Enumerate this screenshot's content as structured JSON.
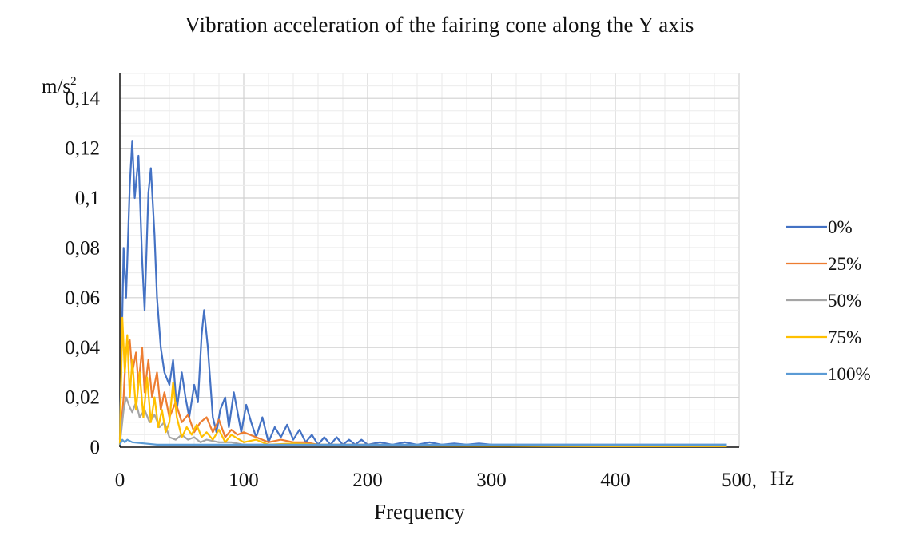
{
  "chart_data": {
    "type": "line",
    "title": "Vibration acceleration of the fairing cone along the Y axis",
    "xlabel": "Frequency",
    "x_unit": "Hz",
    "ylabel": "",
    "y_unit": "m/s",
    "y_unit_exponent": "2",
    "xlim": [
      0,
      500
    ],
    "ylim": [
      0,
      0.15
    ],
    "x_ticks": [
      0,
      100,
      200,
      300,
      400,
      500
    ],
    "x_tick_labels": [
      "0",
      "100",
      "200",
      "300",
      "400",
      "500,"
    ],
    "y_ticks": [
      0,
      0.02,
      0.04,
      0.06,
      0.08,
      0.1,
      0.12,
      0.14
    ],
    "y_tick_labels": [
      "0",
      "0,02",
      "0,04",
      "0,06",
      "0,08",
      "0,1",
      "0,12",
      "0,14"
    ],
    "grid": true,
    "legend_position": "right",
    "series": [
      {
        "name": "0%",
        "color": "#4472C4",
        "x": [
          0,
          3,
          5,
          8,
          10,
          12,
          15,
          18,
          20,
          23,
          25,
          28,
          30,
          33,
          36,
          40,
          43,
          46,
          50,
          53,
          56,
          60,
          63,
          66,
          68,
          71,
          75,
          78,
          81,
          85,
          88,
          92,
          95,
          98,
          102,
          106,
          110,
          115,
          120,
          125,
          130,
          135,
          140,
          145,
          150,
          155,
          160,
          165,
          170,
          175,
          180,
          185,
          190,
          195,
          200,
          210,
          220,
          230,
          240,
          250,
          260,
          270,
          280,
          290,
          300,
          320,
          340,
          360,
          380,
          400,
          420,
          440,
          460,
          480,
          490
        ],
        "values": [
          0.003,
          0.08,
          0.06,
          0.105,
          0.123,
          0.1,
          0.117,
          0.075,
          0.055,
          0.102,
          0.112,
          0.085,
          0.06,
          0.04,
          0.03,
          0.025,
          0.035,
          0.015,
          0.03,
          0.02,
          0.012,
          0.025,
          0.018,
          0.045,
          0.055,
          0.04,
          0.012,
          0.006,
          0.015,
          0.02,
          0.008,
          0.022,
          0.014,
          0.006,
          0.017,
          0.01,
          0.004,
          0.012,
          0.002,
          0.008,
          0.004,
          0.009,
          0.003,
          0.007,
          0.002,
          0.005,
          0.001,
          0.004,
          0.001,
          0.004,
          0.001,
          0.003,
          0.001,
          0.003,
          0.001,
          0.002,
          0.001,
          0.002,
          0.001,
          0.002,
          0.001,
          0.0015,
          0.001,
          0.0015,
          0.001,
          0.001,
          0.001,
          0.001,
          0.001,
          0.001,
          0.001,
          0.001,
          0.001,
          0.001,
          0.001
        ]
      },
      {
        "name": "25%",
        "color": "#ED7D31",
        "x": [
          0,
          3,
          5,
          8,
          10,
          13,
          15,
          18,
          20,
          23,
          26,
          30,
          33,
          36,
          40,
          45,
          50,
          55,
          60,
          65,
          70,
          75,
          80,
          85,
          90,
          95,
          100,
          110,
          120,
          130,
          140,
          150,
          160,
          180,
          200,
          250,
          300,
          400,
          490
        ],
        "values": [
          0.002,
          0.02,
          0.04,
          0.043,
          0.03,
          0.038,
          0.025,
          0.04,
          0.022,
          0.035,
          0.02,
          0.03,
          0.015,
          0.022,
          0.012,
          0.018,
          0.01,
          0.013,
          0.006,
          0.01,
          0.012,
          0.006,
          0.011,
          0.004,
          0.007,
          0.005,
          0.006,
          0.004,
          0.002,
          0.003,
          0.002,
          0.002,
          0.001,
          0.001,
          0.001,
          0.0008,
          0.0006,
          0.0005,
          0.0005
        ]
      },
      {
        "name": "50%",
        "color": "#A5A5A5",
        "x": [
          0,
          3,
          5,
          8,
          10,
          13,
          16,
          20,
          24,
          28,
          32,
          36,
          40,
          45,
          50,
          55,
          60,
          65,
          70,
          80,
          90,
          100,
          120,
          150,
          200,
          300,
          400,
          490
        ],
        "values": [
          0.001,
          0.015,
          0.02,
          0.016,
          0.014,
          0.018,
          0.012,
          0.015,
          0.01,
          0.013,
          0.008,
          0.01,
          0.004,
          0.003,
          0.005,
          0.003,
          0.004,
          0.002,
          0.003,
          0.002,
          0.002,
          0.001,
          0.001,
          0.0008,
          0.0006,
          0.0005,
          0.0004,
          0.0004
        ]
      },
      {
        "name": "75%",
        "color": "#FFC000",
        "x": [
          0,
          2,
          4,
          6,
          8,
          10,
          13,
          16,
          19,
          22,
          25,
          28,
          31,
          34,
          37,
          40,
          43,
          46,
          50,
          54,
          58,
          62,
          66,
          70,
          75,
          80,
          85,
          90,
          100,
          110,
          120,
          140,
          160,
          200,
          250,
          300,
          400,
          490
        ],
        "values": [
          0.001,
          0.052,
          0.03,
          0.045,
          0.02,
          0.035,
          0.015,
          0.03,
          0.012,
          0.028,
          0.01,
          0.02,
          0.008,
          0.015,
          0.006,
          0.01,
          0.026,
          0.012,
          0.004,
          0.008,
          0.005,
          0.009,
          0.004,
          0.006,
          0.003,
          0.007,
          0.002,
          0.005,
          0.002,
          0.003,
          0.001,
          0.0015,
          0.001,
          0.0008,
          0.0006,
          0.0005,
          0.0004,
          0.0004
        ]
      },
      {
        "name": "100%",
        "color": "#5B9BD5",
        "x": [
          0,
          2,
          4,
          6,
          10,
          20,
          30,
          40,
          50,
          60,
          80,
          100,
          150,
          200,
          300,
          400,
          490
        ],
        "values": [
          0.001,
          0.003,
          0.002,
          0.003,
          0.002,
          0.0015,
          0.001,
          0.001,
          0.001,
          0.001,
          0.001,
          0.001,
          0.001,
          0.001,
          0.001,
          0.001,
          0.001
        ]
      }
    ]
  }
}
